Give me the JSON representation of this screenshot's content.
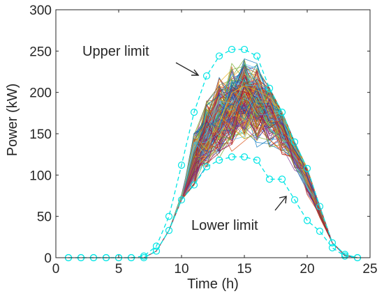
{
  "chart_data": {
    "type": "line",
    "title": "",
    "xlabel": "Time (h)",
    "ylabel": "Power (kW)",
    "xlim": [
      0,
      25
    ],
    "ylim": [
      0,
      300
    ],
    "xticks": [
      0,
      5,
      10,
      15,
      20,
      25
    ],
    "yticks": [
      0,
      50,
      100,
      150,
      200,
      250,
      300
    ],
    "grid": false,
    "legend": "none",
    "n_scenarios": 200,
    "scenario_base_mean": [
      0,
      0,
      0,
      0,
      0,
      0,
      0,
      4,
      22,
      60,
      118,
      150,
      170,
      182,
      190,
      185,
      178,
      160,
      135,
      100,
      62,
      22,
      3,
      0
    ],
    "upper_limit": {
      "label": "Upper limit",
      "color": "#00e5e5",
      "x": [
        1,
        2,
        3,
        4,
        5,
        6,
        7,
        8,
        9,
        10,
        11,
        12,
        13,
        14,
        15,
        16,
        17,
        18,
        19,
        20,
        21,
        22,
        23,
        24
      ],
      "values": [
        0,
        0,
        0,
        0,
        0,
        0,
        2,
        14,
        50,
        112,
        176,
        220,
        244,
        252,
        252,
        244,
        205,
        176,
        140,
        108,
        62,
        18,
        4,
        0
      ]
    },
    "lower_limit": {
      "label": "Lower limit",
      "color": "#00e5e5",
      "x": [
        1,
        2,
        3,
        4,
        5,
        6,
        7,
        8,
        9,
        10,
        11,
        12,
        13,
        14,
        15,
        16,
        17,
        18,
        19,
        20,
        21,
        22,
        23,
        24
      ],
      "values": [
        0,
        0,
        0,
        0,
        0,
        0,
        0,
        8,
        33,
        70,
        88,
        110,
        118,
        122,
        122,
        118,
        95,
        95,
        70,
        45,
        32,
        12,
        2,
        0
      ]
    },
    "series_colors": [
      "#0072bd",
      "#d95319",
      "#edb120",
      "#7e2f8e",
      "#77ac30",
      "#4dbeee",
      "#a2142f"
    ]
  }
}
